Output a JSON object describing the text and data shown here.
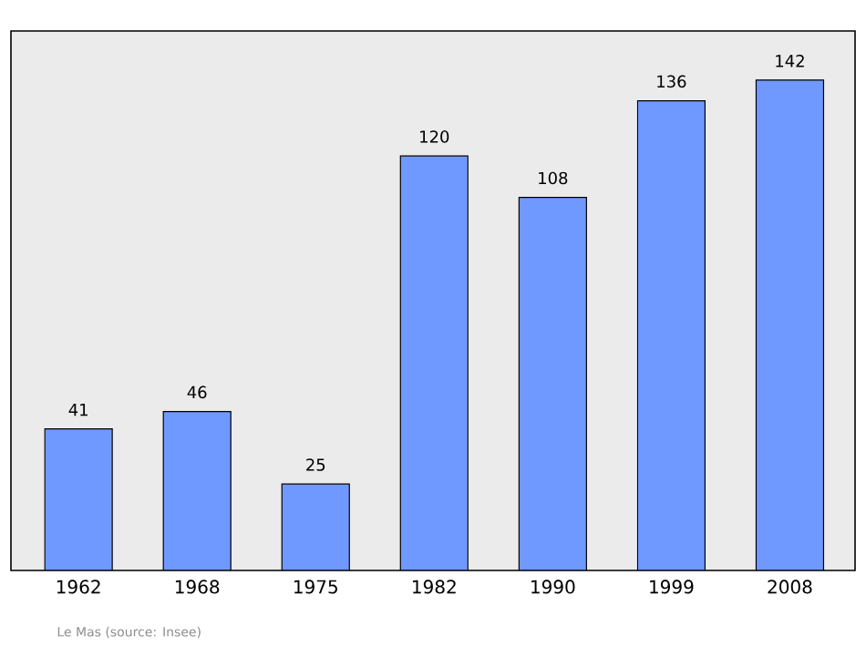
{
  "chart_data": {
    "type": "bar",
    "categories": [
      "1962",
      "1968",
      "1975",
      "1982",
      "1990",
      "1999",
      "2008"
    ],
    "values": [
      41,
      46,
      25,
      120,
      108,
      136,
      142
    ],
    "color": "#7099ff",
    "data_labels": true,
    "annotations": [
      "Le Mas   (source: Insee)"
    ]
  }
}
